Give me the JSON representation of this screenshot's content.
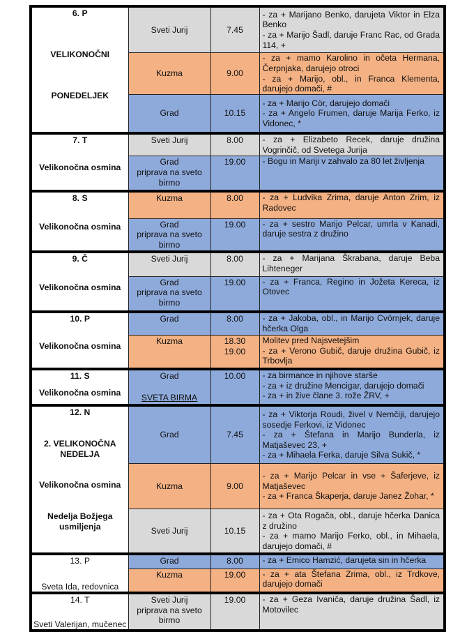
{
  "colors": {
    "Sveti Jurij": "#d9d9d9",
    "Kuzma": "#f4b183",
    "Grad": "#8eaadb"
  },
  "days": [
    {
      "title": "6. P",
      "bold": true,
      "labels": [
        "VELIKONOČNI",
        "PONEDELJEK"
      ],
      "masses": [
        {
          "location": [
            "Sveti Jurij"
          ],
          "time": [
            "7.45"
          ],
          "intentions": [
            "- za + Marijano Benko, darujeta Viktor in Elza Benko",
            "- za + Marijo Šadl, daruje Franc Rac, od Grada 114, +"
          ]
        },
        {
          "location": [
            "Kuzma"
          ],
          "time": [
            "9.00"
          ],
          "intentions": [
            "- za + mamo Karolino in očeta Hermana, Čerpnjaka, darujejo otroci",
            "- za + Marijo, obl., in Franca Klementa, darujejo domači, #"
          ]
        },
        {
          "location": [
            "Grad"
          ],
          "time": [
            "10.15"
          ],
          "intentions": [
            "- za + Marijo Cör, darujejo domači",
            "- za + Angelo Frumen, daruje Marija Ferko, iz Vidonec, *"
          ]
        }
      ]
    },
    {
      "title": "7. T",
      "bold": true,
      "labels": [
        "Velikonočna osmina"
      ],
      "masses": [
        {
          "location": [
            "Sveti Jurij"
          ],
          "time": [
            "8.00"
          ],
          "intentions": [
            "- za + Elizabeto Recek, daruje družina Vogrinčič, od Svetega Jurija"
          ]
        },
        {
          "location": [
            "Grad",
            "priprava na sveto birmo"
          ],
          "time": [
            "19.00"
          ],
          "intentions": [
            "- Bogu in Mariji v zahvalo za 80 let življenja"
          ]
        }
      ]
    },
    {
      "title": "8. S",
      "bold": true,
      "labels": [
        "Velikonočna osmina"
      ],
      "masses": [
        {
          "location": [
            "Kuzma"
          ],
          "time": [
            "8.00"
          ],
          "intentions": [
            "- za + Ludvika Zrima, daruje Anton Zrim, iz Radovec"
          ]
        },
        {
          "location": [
            "Grad",
            "priprava na sveto birmo"
          ],
          "time": [
            "19.00"
          ],
          "intentions": [
            "- za + sestro Marijo Pelcar, umrla v Kanadi, daruje sestra z družino"
          ]
        }
      ]
    },
    {
      "title": "9. Č",
      "bold": true,
      "labels": [
        "Velikonočna osmina"
      ],
      "masses": [
        {
          "location": [
            "Sveti Jurij"
          ],
          "time": [
            "8.00"
          ],
          "intentions": [
            "- za + Marijana Škrabana, daruje Beba Lihteneger"
          ]
        },
        {
          "location": [
            "Grad",
            "priprava na sveto birmo"
          ],
          "time": [
            "19.00"
          ],
          "intentions": [
            "- za + Franca, Regino in Jožeta Kereca, iz Otovec"
          ]
        }
      ]
    },
    {
      "title": "10. P",
      "bold": true,
      "labels": [
        "Velikonočna osmina"
      ],
      "masses": [
        {
          "location": [
            "Grad"
          ],
          "time": [
            "8.00"
          ],
          "intentions": [
            "- za + Jakoba, obl., in Marijo Cvörnjek, daruje hčerka Olga"
          ]
        },
        {
          "location": [
            "Kuzma"
          ],
          "time": [
            "18.30",
            "19.00"
          ],
          "intentions": [
            "Molitev pred Najsvetejšim",
            "- za + Verono Gubič, daruje družina Gubič, iz Trbovlja"
          ]
        }
      ]
    },
    {
      "title": "11. S",
      "bold": true,
      "labels": [
        "Velikonočna osmina"
      ],
      "masses": [
        {
          "location": [
            "Grad"
          ],
          "location_note": "SVETA BIRMA",
          "time": [
            "10.00"
          ],
          "intentions": [
            "- za birmance in njihove starše",
            "- za + iz družine Mencigar, darujejo domači",
            "- za + in žive člane 3. rože ŽRV, +"
          ]
        }
      ]
    },
    {
      "title": "12. N",
      "bold": true,
      "labels": [
        "2. VELIKONOČNA NEDELJA",
        "Velikonočna osmina",
        "Nedelja Božjega usmiljenja"
      ],
      "masses": [
        {
          "location": [
            "Grad"
          ],
          "time": [
            "7.45"
          ],
          "intentions": [
            "- za + Viktorja Roudi, živel v Nemčiji, darujejo sosedje Ferkovi, iz Vidonec",
            "- za + Štefana in Marijo Bunderla, iz Matjaševec 23, +",
            "- za + Mihaela Ferka, daruje Silva Sukič, *"
          ]
        },
        {
          "location": [
            "Kuzma"
          ],
          "time": [
            "9.00"
          ],
          "intentions": [
            "- za + Marijo Pelcar in vse + Šaferjeve, iz Matjaševec",
            "- za + Franca Škaperja, daruje Janez Žohar, *"
          ]
        },
        {
          "location": [
            "Sveti Jurij"
          ],
          "time": [
            "10.15"
          ],
          "intentions": [
            "- za + Ota Rogača, obl., daruje hčerka Danica z družino",
            "- za + mamo Marijo Ferko, obl., in Mihaela, darujejo domači, #"
          ]
        }
      ]
    },
    {
      "title": "13. P",
      "bold": false,
      "labels": [
        "Sveta Ida, redovnica"
      ],
      "masses": [
        {
          "location": [
            "Grad"
          ],
          "time": [
            "8.00"
          ],
          "intentions": [
            "- za + Emico Hamzić, darujeta sin in hčerka"
          ]
        },
        {
          "location": [
            "Kuzma"
          ],
          "time": [
            "19.00"
          ],
          "intentions": [
            "- za + ata Štefana Zrima, obl., iz Trdkove, darujejo domači"
          ]
        }
      ]
    },
    {
      "title": "14. T",
      "bold": false,
      "labels": [
        "Sveti Valerijan, mučenec"
      ],
      "masses": [
        {
          "location": [
            "Sveti Jurij",
            "priprava na sveto birmo"
          ],
          "time": [
            "19.00"
          ],
          "intentions": [
            "- za + Geza Ivaniča, daruje družina Šadl, iz Motovilec"
          ]
        }
      ]
    }
  ]
}
